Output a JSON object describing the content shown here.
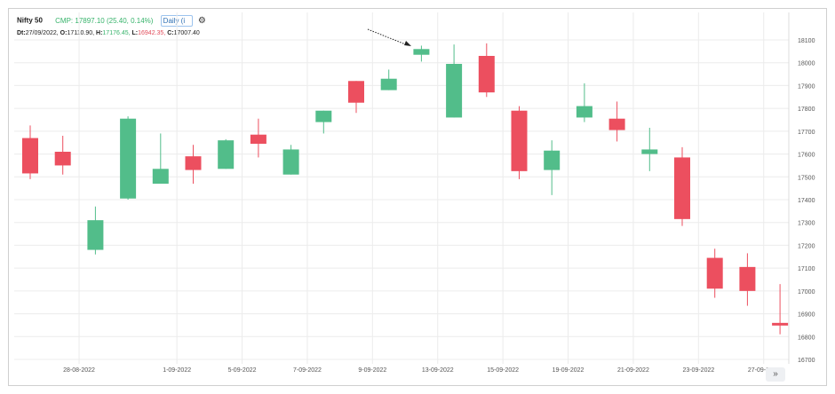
{
  "header": {
    "symbol": "Nifty 50",
    "cmp": "CMP: 17897.10 (25.40, 0.14%)",
    "interval_select": "Daily (i",
    "settings_icon": "gear-icon"
  },
  "ohlc_line": {
    "dt_label": "Dt:",
    "dt_value": "27/09/2022,",
    "o_label": "O:",
    "o_value": "17110.90,",
    "h_label": "H:",
    "h_value": "17176.45,",
    "l_label": "L:",
    "l_value": "16942.35,",
    "c_label": "C:",
    "c_value": "17007.40"
  },
  "navigation": {
    "scroll_icon": "double-chevron-right-icon",
    "glyph": "»"
  },
  "colors": {
    "up": "#52bd8a",
    "down": "#ec4f5f",
    "grid": "#ececec",
    "axis_text": "#555555"
  },
  "chart_data": {
    "type": "candlestick",
    "title": "",
    "ylim": [
      16700,
      18150
    ],
    "y_ticks": [
      16700,
      16800,
      16900,
      17000,
      17100,
      17200,
      17300,
      17400,
      17500,
      17600,
      17700,
      17800,
      17900,
      18000,
      18100
    ],
    "x_tick_labels": [
      {
        "label": "28-08-2022",
        "after_index": 1
      },
      {
        "label": "1-09-2022",
        "after_index": 4
      },
      {
        "label": "5-09-2022",
        "after_index": 6
      },
      {
        "label": "7-09-2022",
        "after_index": 8
      },
      {
        "label": "9-09-2022",
        "after_index": 10
      },
      {
        "label": "13-09-2022",
        "after_index": 12
      },
      {
        "label": "15-09-2022",
        "after_index": 14
      },
      {
        "label": "19-09-2022",
        "after_index": 16
      },
      {
        "label": "21-09-2022",
        "after_index": 18
      },
      {
        "label": "23-09-2022",
        "after_index": 20
      },
      {
        "label": "27-09-2022",
        "after_index": 22
      }
    ],
    "candles": [
      {
        "o": 17670,
        "h": 17725,
        "l": 17490,
        "c": 17515
      },
      {
        "o": 17610,
        "h": 17680,
        "l": 17510,
        "c": 17550
      },
      {
        "o": 17180,
        "h": 17370,
        "l": 17160,
        "c": 17310
      },
      {
        "o": 17405,
        "h": 17765,
        "l": 17400,
        "c": 17755
      },
      {
        "o": 17470,
        "h": 17690,
        "l": 17470,
        "c": 17535
      },
      {
        "o": 17590,
        "h": 17640,
        "l": 17470,
        "c": 17530
      },
      {
        "o": 17535,
        "h": 17665,
        "l": 17535,
        "c": 17660
      },
      {
        "o": 17685,
        "h": 17755,
        "l": 17585,
        "c": 17645
      },
      {
        "o": 17510,
        "h": 17640,
        "l": 17510,
        "c": 17620
      },
      {
        "o": 17740,
        "h": 17790,
        "l": 17690,
        "c": 17790
      },
      {
        "o": 17920,
        "h": 17920,
        "l": 17780,
        "c": 17825
      },
      {
        "o": 17880,
        "h": 17970,
        "l": 17880,
        "c": 17930
      },
      {
        "o": 18035,
        "h": 18075,
        "l": 18005,
        "c": 18060
      },
      {
        "o": 17760,
        "h": 18080,
        "l": 17760,
        "c": 17995
      },
      {
        "o": 18030,
        "h": 18085,
        "l": 17850,
        "c": 17870
      },
      {
        "o": 17790,
        "h": 17810,
        "l": 17490,
        "c": 17525
      },
      {
        "o": 17530,
        "h": 17660,
        "l": 17420,
        "c": 17615
      },
      {
        "o": 17760,
        "h": 17910,
        "l": 17740,
        "c": 17810
      },
      {
        "o": 17755,
        "h": 17830,
        "l": 17655,
        "c": 17705
      },
      {
        "o": 17600,
        "h": 17715,
        "l": 17525,
        "c": 17620
      },
      {
        "o": 17585,
        "h": 17630,
        "l": 17285,
        "c": 17315
      },
      {
        "o": 17145,
        "h": 17185,
        "l": 16970,
        "c": 17010
      },
      {
        "o": 17105,
        "h": 17165,
        "l": 16935,
        "c": 17000
      },
      {
        "o": 16860,
        "h": 17030,
        "l": 16810,
        "c": 16850
      }
    ]
  }
}
